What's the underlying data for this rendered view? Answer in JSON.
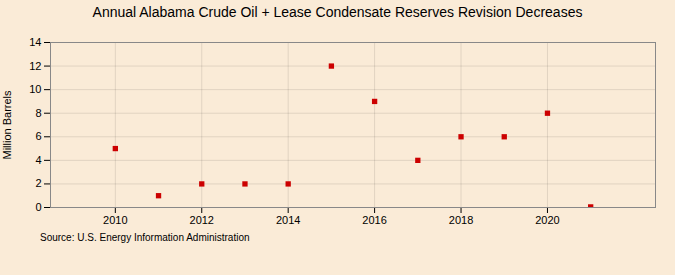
{
  "chart_data": {
    "type": "scatter",
    "title": "Annual Alabama Crude Oil + Lease Condensate Reserves Revision Decreases",
    "ylabel": "Million Barrels",
    "source": "Source: U.S. Energy Information Administration",
    "x": [
      2010,
      2011,
      2012,
      2013,
      2014,
      2015,
      2016,
      2017,
      2018,
      2019,
      2020,
      2021
    ],
    "values": [
      5,
      1,
      2,
      2,
      2,
      12,
      9,
      4,
      6,
      6,
      8,
      0.05
    ],
    "color": "#cc0000",
    "marker": "square",
    "xlim": [
      2008.5,
      2022.5
    ],
    "ylim": [
      0,
      14
    ],
    "xticks": [
      2010,
      2012,
      2014,
      2016,
      2018,
      2020
    ],
    "yticks": [
      0,
      2,
      4,
      6,
      8,
      10,
      12,
      14
    ],
    "grid": true
  }
}
